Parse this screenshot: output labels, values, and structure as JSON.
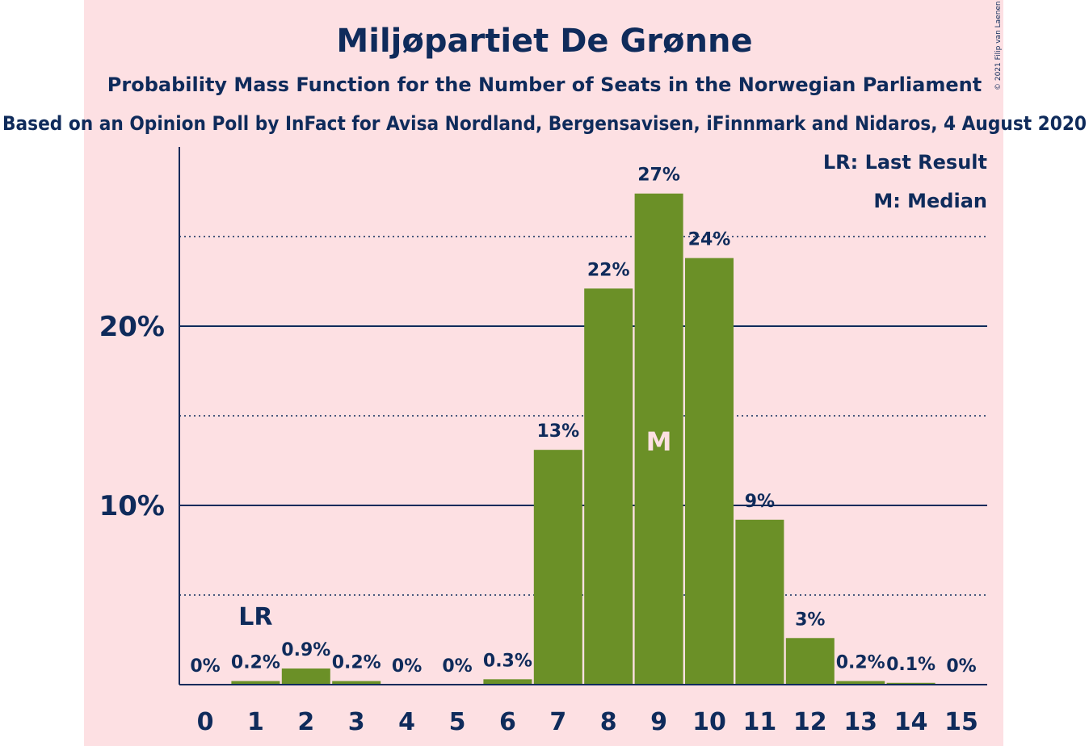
{
  "chart_data": {
    "type": "bar",
    "title": "Miljøpartiet De Grønne",
    "subtitle": "Probability Mass Function for the Number of Seats in the Norwegian Parliament",
    "source": "Based on an Opinion Poll by InFact for Avisa Nordland, Bergensavisen, iFinnmark and Nidaros, 4 August 2020",
    "copyright": "© 2021 Filip van Laenen",
    "categories": [
      "0",
      "1",
      "2",
      "3",
      "4",
      "5",
      "6",
      "7",
      "8",
      "9",
      "10",
      "11",
      "12",
      "13",
      "14",
      "15"
    ],
    "values": [
      0,
      0.2,
      0.9,
      0.2,
      0,
      0,
      0.3,
      13.1,
      22.1,
      27.4,
      23.8,
      9.2,
      2.6,
      0.2,
      0.1,
      0
    ],
    "data_labels": [
      "0%",
      "0.2%",
      "0.9%",
      "0.2%",
      "0%",
      "0%",
      "0.3%",
      "13%",
      "22%",
      "27%",
      "24%",
      "9%",
      "3%",
      "0.2%",
      "0.1%",
      "0%"
    ],
    "ylim": [
      0,
      30
    ],
    "major_gridlines": [
      10,
      20
    ],
    "minor_gridlines": [
      5,
      15,
      25
    ],
    "ytick_labels": [
      {
        "value": 10,
        "label": "10%"
      },
      {
        "value": 20,
        "label": "20%"
      }
    ],
    "last_result_index": 1,
    "last_result_marker": "LR",
    "median_index": 9,
    "median_marker": "M",
    "legend": [
      "LR: Last Result",
      "M: Median"
    ],
    "legend_placement": "top-right",
    "bar_color": "#6b9027",
    "text_color": "#0f2b5b"
  }
}
